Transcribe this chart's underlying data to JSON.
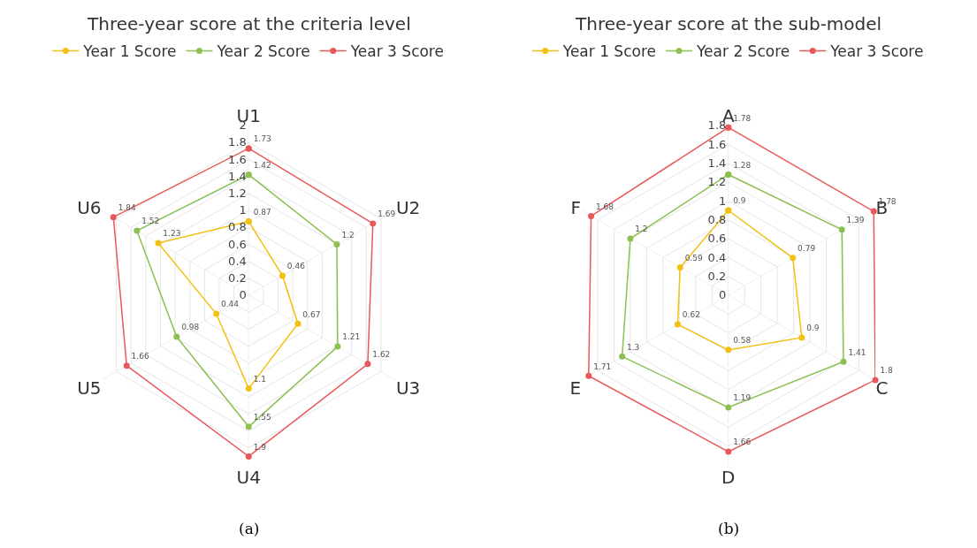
{
  "chart_data": [
    {
      "type": "radar",
      "title": "Three-year score at the criteria level",
      "categories": [
        "U1",
        "U2",
        "U3",
        "U4",
        "U5",
        "U6"
      ],
      "ylim": [
        0,
        2
      ],
      "yticks": [
        0,
        0.2,
        0.4,
        0.6,
        0.8,
        1,
        1.2,
        1.4,
        1.6,
        1.8,
        2
      ],
      "grid": true,
      "legend": "top",
      "marker": "circle",
      "data_labels": true,
      "annotations": [
        "(a)"
      ],
      "series": [
        {
          "name": "Year 1 Score",
          "color": "#f2c010",
          "values": [
            0.87,
            0.46,
            0.67,
            1.1,
            0.44,
            1.23
          ]
        },
        {
          "name": "Year 2 Score",
          "color": "#8cc152",
          "values": [
            1.42,
            1.2,
            1.21,
            1.55,
            0.98,
            1.52
          ]
        },
        {
          "name": "Year 3 Score",
          "color": "#e8585a",
          "values": [
            1.73,
            1.69,
            1.62,
            1.9,
            1.66,
            1.84
          ]
        }
      ]
    },
    {
      "type": "radar",
      "title": "Three-year score at the sub-model",
      "categories": [
        "A",
        "B",
        "C",
        "D",
        "E",
        "F"
      ],
      "ylim": [
        0,
        1.8
      ],
      "yticks": [
        0,
        0.2,
        0.4,
        0.6,
        0.8,
        1,
        1.2,
        1.4,
        1.6,
        1.8
      ],
      "grid": true,
      "legend": "top",
      "marker": "circle",
      "data_labels": true,
      "annotations": [
        "(b)"
      ],
      "series": [
        {
          "name": "Year 1 Score",
          "color": "#f2c010",
          "values": [
            0.9,
            0.79,
            0.9,
            0.58,
            0.62,
            0.59
          ]
        },
        {
          "name": "Year 2 Score",
          "color": "#8cc152",
          "values": [
            1.28,
            1.39,
            1.41,
            1.19,
            1.3,
            1.2
          ]
        },
        {
          "name": "Year 3 Score",
          "color": "#e8585a",
          "values": [
            1.78,
            1.78,
            1.8,
            1.66,
            1.71,
            1.68
          ]
        }
      ]
    }
  ]
}
